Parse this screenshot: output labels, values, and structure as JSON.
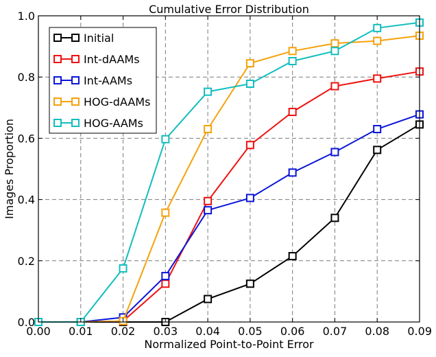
{
  "chart_data": {
    "type": "line",
    "title": "Cumulative Error Distribution",
    "xlabel": "Normalized Point-to-Point Error",
    "ylabel": "Images Proportion",
    "xlim": [
      0,
      0.09
    ],
    "ylim": [
      0,
      1.0
    ],
    "grid": true,
    "legend_position": "top-left",
    "x_ticks": [
      "0.00",
      "0.01",
      "0.02",
      "0.03",
      "0.04",
      "0.05",
      "0.06",
      "0.07",
      "0.08",
      "0.09"
    ],
    "y_ticks": [
      "0.0",
      "0.2",
      "0.4",
      "0.6",
      "0.8",
      "1.0"
    ],
    "x": [
      0.0,
      0.01,
      0.02,
      0.03,
      0.04,
      0.05,
      0.06,
      0.07,
      0.08,
      0.09
    ],
    "series": [
      {
        "name": "Initial",
        "color": "#000000",
        "values": [
          0.0,
          0.0,
          0.0,
          0.0,
          0.075,
          0.125,
          0.215,
          0.34,
          0.562,
          0.645
        ]
      },
      {
        "name": "Int-dAAMs",
        "color": "#ee1111",
        "values": [
          0.0,
          0.0,
          0.003,
          0.125,
          0.395,
          0.578,
          0.686,
          0.77,
          0.795,
          0.818
        ]
      },
      {
        "name": "Int-AAMs",
        "color": "#0a14d8",
        "values": [
          0.0,
          0.0,
          0.015,
          0.15,
          0.365,
          0.405,
          0.488,
          0.555,
          0.63,
          0.678
        ]
      },
      {
        "name": "HOG-dAAMs",
        "color": "#f5a20a",
        "values": [
          0.0,
          0.0,
          0.003,
          0.357,
          0.63,
          0.845,
          0.885,
          0.91,
          0.918,
          0.935
        ]
      },
      {
        "name": "HOG-AAMs",
        "color": "#12bdbd",
        "values": [
          0.0,
          0.0,
          0.175,
          0.597,
          0.752,
          0.778,
          0.852,
          0.885,
          0.96,
          0.978
        ]
      }
    ]
  }
}
